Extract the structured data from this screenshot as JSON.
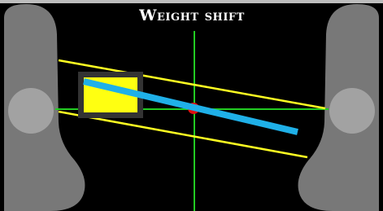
{
  "header": {
    "title": "Weight shift"
  }
}
